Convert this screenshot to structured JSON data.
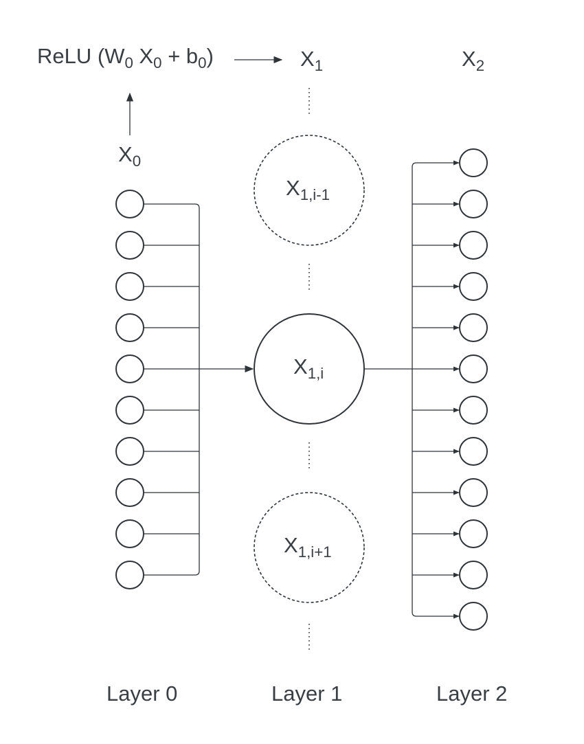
{
  "formula": {
    "prefix": "ReLU (W",
    "w_sub": "0",
    "x": " X",
    "x_sub": "0",
    "plus": " + b",
    "b_sub": "0",
    "suffix": ")"
  },
  "vectors": {
    "input": {
      "base": "X",
      "sub": "0"
    },
    "hidden": {
      "base": "X",
      "sub": "1"
    },
    "output": {
      "base": "X",
      "sub": "2"
    }
  },
  "hidden_nodes": [
    {
      "base": "X",
      "sub": "1,i-1",
      "style": "dashed"
    },
    {
      "base": "X",
      "sub": "1,i",
      "style": "solid"
    },
    {
      "base": "X",
      "sub": "1,i+1",
      "style": "dashed"
    }
  ],
  "layers": [
    {
      "label": "Layer 0",
      "node_count": 10
    },
    {
      "label": "Layer 1",
      "node_count": 3
    },
    {
      "label": "Layer 2",
      "node_count": 12
    }
  ],
  "colors": {
    "stroke": "#2f3438",
    "text": "#3a3f44"
  }
}
